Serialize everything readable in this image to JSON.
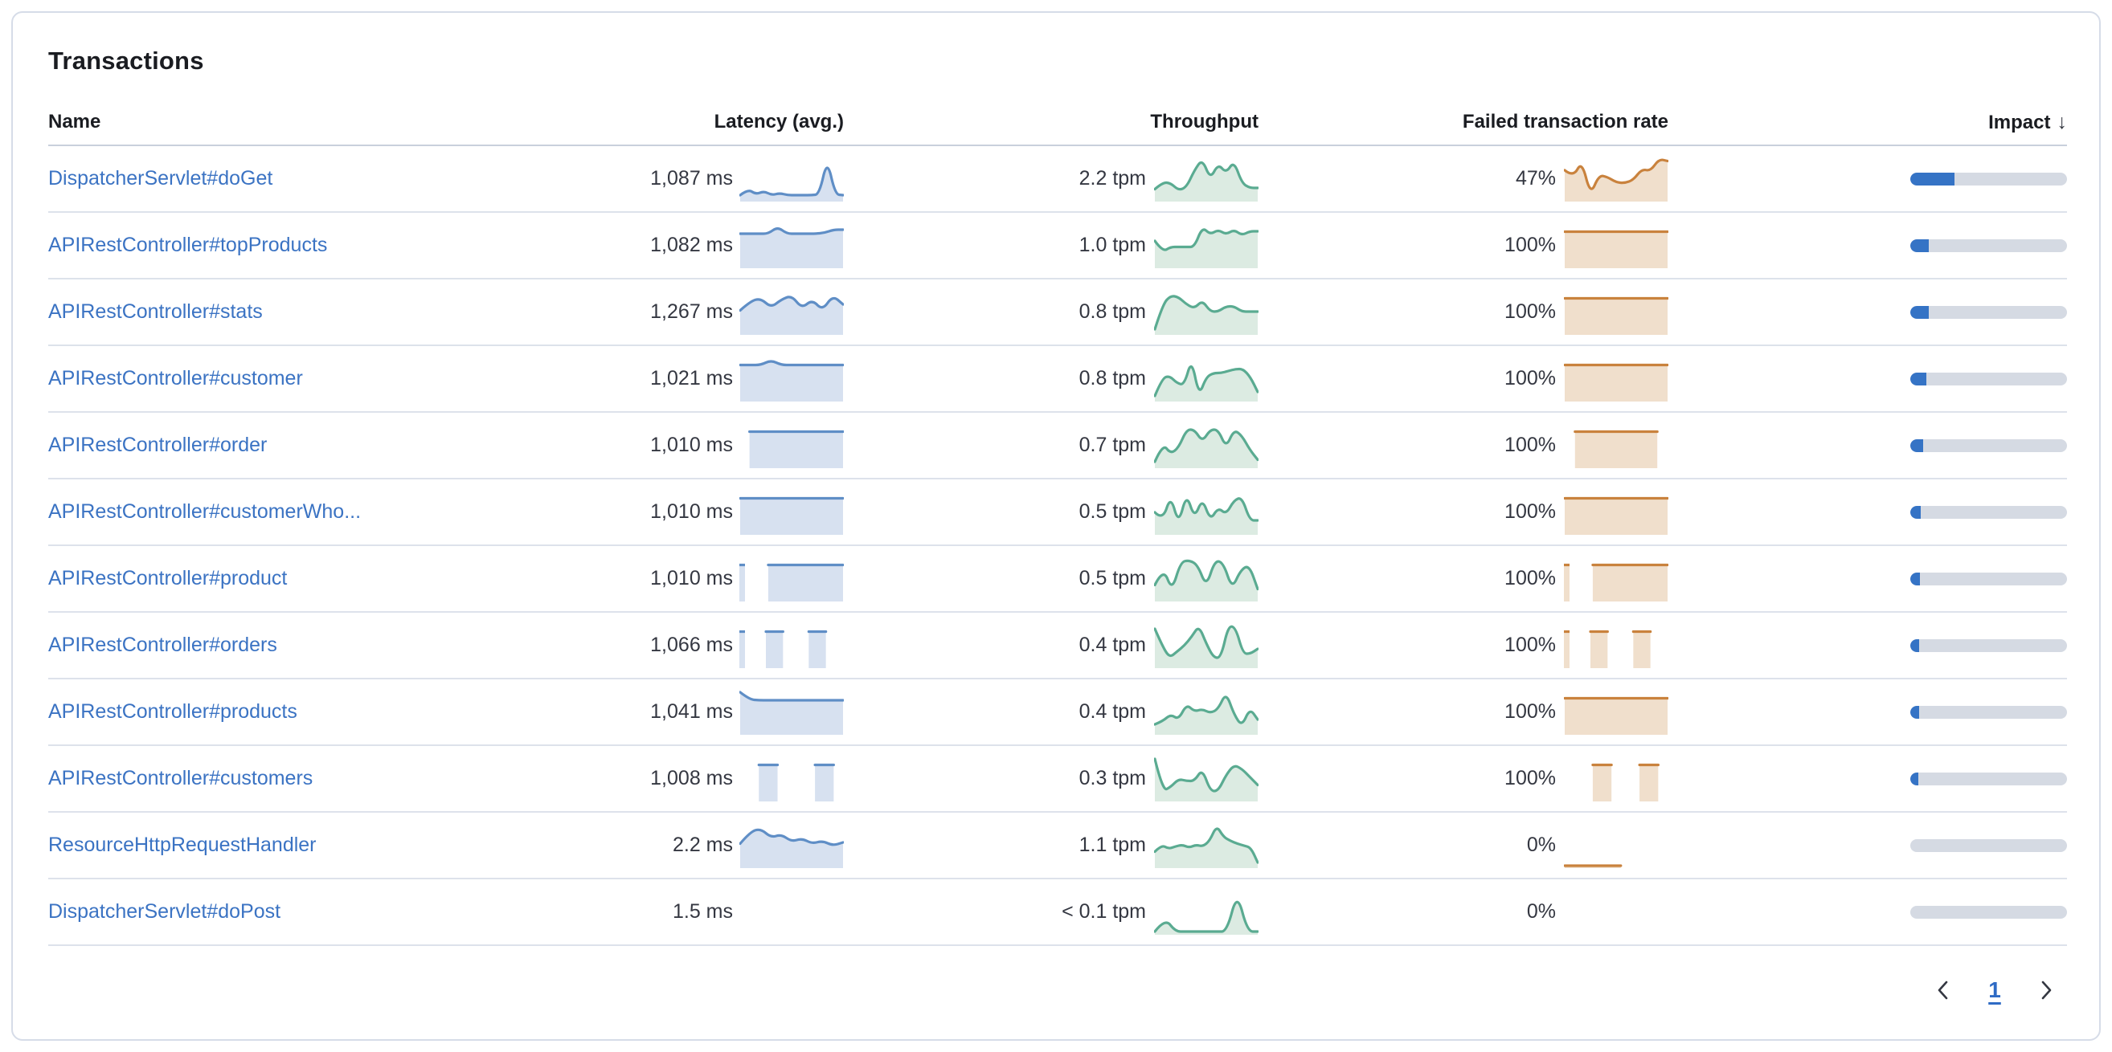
{
  "card": {
    "title": "Transactions"
  },
  "table": {
    "columns": [
      {
        "id": "name",
        "label": "Name"
      },
      {
        "id": "latency",
        "label": "Latency (avg.)"
      },
      {
        "id": "throughput",
        "label": "Throughput"
      },
      {
        "id": "failed",
        "label": "Failed transaction rate"
      },
      {
        "id": "impact",
        "label": "Impact",
        "sorted": "desc"
      }
    ],
    "sort_icon": "↓"
  },
  "colors": {
    "link": "#3b73c3",
    "latency_line": "#5f8ec6",
    "latency_fill": "#d7e1f0",
    "throughput_line": "#5aab91",
    "throughput_fill": "#dcebe2",
    "failed_line": "#c9823d",
    "failed_fill": "#f0dfcc",
    "impact_fill": "#3573c5",
    "impact_track": "#d5dae3"
  },
  "rows": [
    {
      "name": "DispatcherServlet#doGet",
      "latency": "1,087 ms",
      "throughput": "2.2 tpm",
      "failed_rate": "47%",
      "impact_pct": 28,
      "latency_spark": [
        0.1,
        0.25,
        0.12,
        0.2,
        0.1,
        0.15,
        0.1,
        0.1,
        0.1,
        0.1,
        0.12,
        1.0,
        0.12,
        0.1
      ],
      "throughput_spark": [
        0.25,
        0.42,
        0.4,
        0.22,
        0.3,
        0.72,
        1.0,
        0.5,
        0.88,
        0.65,
        0.95,
        0.4,
        0.28,
        0.28
      ],
      "failed_spark": [
        0.72,
        0.55,
        0.95,
        0.1,
        0.6,
        0.55,
        0.42,
        0.4,
        0.48,
        0.75,
        0.7,
        1.0,
        0.95
      ]
    },
    {
      "name": "APIRestController#topProducts",
      "latency": "1,082 ms",
      "throughput": "1.0 tpm",
      "failed_rate": "100%",
      "impact_pct": 12,
      "latency_spark": [
        0.8,
        0.8,
        0.8,
        0.8,
        0.97,
        0.8,
        0.8,
        0.8,
        0.8,
        0.82,
        0.9,
        0.9
      ],
      "throughput_spark": [
        0.62,
        0.35,
        0.47,
        0.47,
        0.47,
        0.47,
        0.97,
        0.78,
        0.9,
        0.78,
        0.9,
        0.76,
        0.86,
        0.86
      ],
      "failed_spark": [
        0.85,
        0.85,
        0.85,
        0.85,
        0.85,
        0.85,
        0.85,
        0.85,
        0.85,
        0.85,
        0.85,
        0.85
      ]
    },
    {
      "name": "APIRestController#stats",
      "latency": "1,267 ms",
      "throughput": "0.8 tpm",
      "failed_rate": "100%",
      "impact_pct": 12,
      "latency_spark": [
        0.55,
        0.78,
        0.85,
        0.62,
        0.82,
        0.92,
        0.6,
        0.82,
        0.55,
        0.92,
        0.7
      ],
      "throughput_spark": [
        0.08,
        0.7,
        0.92,
        0.88,
        0.7,
        0.6,
        0.8,
        0.52,
        0.52,
        0.65,
        0.65,
        0.52,
        0.52,
        0.52
      ],
      "failed_spark": [
        0.85,
        0.85,
        0.85,
        0.85,
        0.85,
        0.85,
        0.85,
        0.85,
        0.85,
        0.85,
        0.85,
        0.85
      ]
    },
    {
      "name": "APIRestController#customer",
      "latency": "1,021 ms",
      "throughput": "0.8 tpm",
      "failed_rate": "100%",
      "impact_pct": 10,
      "latency_spark": [
        0.85,
        0.85,
        0.85,
        0.97,
        0.85,
        0.85,
        0.85,
        0.85,
        0.85,
        0.85,
        0.85
      ],
      "throughput_spark": [
        0.08,
        0.52,
        0.58,
        0.4,
        0.35,
        1.0,
        0.08,
        0.55,
        0.65,
        0.65,
        0.7,
        0.75,
        0.75,
        0.55,
        0.18
      ],
      "failed_spark": [
        0.85,
        0.85,
        0.85,
        0.85,
        0.85,
        0.85,
        0.85,
        0.85,
        0.85,
        0.85,
        0.85,
        0.85
      ]
    },
    {
      "name": "APIRestController#order",
      "latency": "1,010 ms",
      "throughput": "0.7 tpm",
      "failed_rate": "100%",
      "impact_pct": 8,
      "latency_spark": [
        null,
        0.85,
        0.85,
        0.85,
        0.85,
        0.85,
        0.85,
        0.85,
        0.85,
        0.85,
        0.85,
        0.85
      ],
      "throughput_spark": [
        0.1,
        0.55,
        0.3,
        0.45,
        0.9,
        0.9,
        0.6,
        0.9,
        0.9,
        0.45,
        0.9,
        0.75,
        0.4,
        0.15
      ],
      "failed_spark": [
        null,
        0.85,
        0.85,
        0.85,
        0.85,
        0.85,
        0.85,
        0.85,
        0.85,
        0.85,
        null
      ]
    },
    {
      "name": "APIRestController#customerWho...",
      "latency": "1,010 ms",
      "throughput": "0.5 tpm",
      "failed_rate": "100%",
      "impact_pct": 6.5,
      "latency_spark": [
        0.85,
        0.85,
        0.85,
        0.85,
        0.85,
        0.85,
        0.85,
        0.85,
        0.85,
        0.85,
        0.85,
        0.85
      ],
      "throughput_spark": [
        0.5,
        0.3,
        0.92,
        0.2,
        0.97,
        0.35,
        0.85,
        0.3,
        0.62,
        0.45,
        0.8,
        0.88,
        0.3,
        0.3
      ],
      "failed_spark": [
        0.85,
        0.85,
        0.85,
        0.85,
        0.85,
        0.85,
        0.85,
        0.85,
        0.85,
        0.85,
        0.85,
        0.85
      ]
    },
    {
      "name": "APIRestController#product",
      "latency": "1,010 ms",
      "throughput": "0.5 tpm",
      "failed_rate": "100%",
      "impact_pct": 6,
      "latency_spark": [
        0.85,
        null,
        null,
        0.85,
        0.85,
        0.85,
        0.85,
        0.85,
        0.85,
        0.85,
        0.85,
        0.85
      ],
      "throughput_spark": [
        0.35,
        0.78,
        0.2,
        0.92,
        0.97,
        0.85,
        0.3,
        0.97,
        0.9,
        0.25,
        0.72,
        0.85,
        0.25
      ],
      "failed_spark": [
        0.85,
        null,
        null,
        0.85,
        0.85,
        0.85,
        0.85,
        0.85,
        0.85,
        0.85,
        0.85,
        0.85
      ]
    },
    {
      "name": "APIRestController#orders",
      "latency": "1,066 ms",
      "throughput": "0.4 tpm",
      "failed_rate": "100%",
      "impact_pct": 5.5,
      "latency_spark": [
        0.85,
        null,
        null,
        0.85,
        0.85,
        0.85,
        null,
        null,
        0.85,
        0.85,
        0.85,
        null,
        null
      ],
      "throughput_spark": [
        0.92,
        0.5,
        0.2,
        0.35,
        0.5,
        0.72,
        1.0,
        0.55,
        0.2,
        0.2,
        1.0,
        0.95,
        0.3,
        0.3,
        0.42
      ],
      "failed_spark": [
        0.85,
        null,
        null,
        0.85,
        0.85,
        0.85,
        null,
        null,
        0.85,
        0.85,
        0.85,
        null,
        null
      ]
    },
    {
      "name": "APIRestController#products",
      "latency": "1,041 ms",
      "throughput": "0.4 tpm",
      "failed_rate": "100%",
      "impact_pct": 5.5,
      "latency_spark": [
        1.0,
        0.82,
        0.8,
        0.8,
        0.8,
        0.8,
        0.8,
        0.8,
        0.8,
        0.8,
        0.8,
        0.8
      ],
      "throughput_spark": [
        0.2,
        0.28,
        0.45,
        0.32,
        0.7,
        0.52,
        0.58,
        0.48,
        0.58,
        1.0,
        0.45,
        0.15,
        0.6,
        0.32
      ],
      "failed_spark": [
        0.85,
        0.85,
        0.85,
        0.85,
        0.85,
        0.85,
        0.85,
        0.85,
        0.85,
        0.85,
        0.85,
        0.85
      ]
    },
    {
      "name": "APIRestController#customers",
      "latency": "1,008 ms",
      "throughput": "0.3 tpm",
      "failed_rate": "100%",
      "impact_pct": 5,
      "latency_spark": [
        null,
        null,
        0.85,
        0.85,
        0.85,
        null,
        null,
        null,
        0.85,
        0.85,
        0.85,
        null
      ],
      "throughput_spark": [
        1.0,
        0.2,
        0.3,
        0.5,
        0.45,
        0.45,
        0.75,
        0.2,
        0.2,
        0.6,
        0.85,
        0.75,
        0.55,
        0.35
      ],
      "failed_spark": [
        null,
        null,
        null,
        0.85,
        0.85,
        0.85,
        null,
        null,
        0.85,
        0.85,
        0.85,
        null
      ]
    },
    {
      "name": "ResourceHttpRequestHandler",
      "latency": "2.2 ms",
      "throughput": "1.1 tpm",
      "failed_rate": "0%",
      "impact_pct": 0,
      "latency_spark": [
        0.55,
        0.85,
        0.92,
        0.7,
        0.78,
        0.6,
        0.68,
        0.55,
        0.62,
        0.5,
        0.58
      ],
      "throughput_spark": [
        0.35,
        0.52,
        0.42,
        0.48,
        0.52,
        0.45,
        0.52,
        0.48,
        0.62,
        1.0,
        0.72,
        0.62,
        0.55,
        0.5,
        0.45,
        0.08
      ],
      "failed_spark": [
        0,
        0,
        0,
        0,
        0,
        0,
        0,
        null,
        null,
        null,
        null,
        null
      ]
    },
    {
      "name": "DispatcherServlet#doPost",
      "latency": "1.5 ms",
      "throughput": "< 0.1 tpm",
      "failed_rate": "0%",
      "impact_pct": 0,
      "latency_spark": [],
      "throughput_spark": [
        0.02,
        0.35,
        0.02,
        0.02,
        0.02,
        0.02,
        0.02,
        0.02,
        1.0,
        0.02,
        0.02
      ],
      "failed_spark": []
    }
  ],
  "pagination": {
    "current_page": "1"
  }
}
